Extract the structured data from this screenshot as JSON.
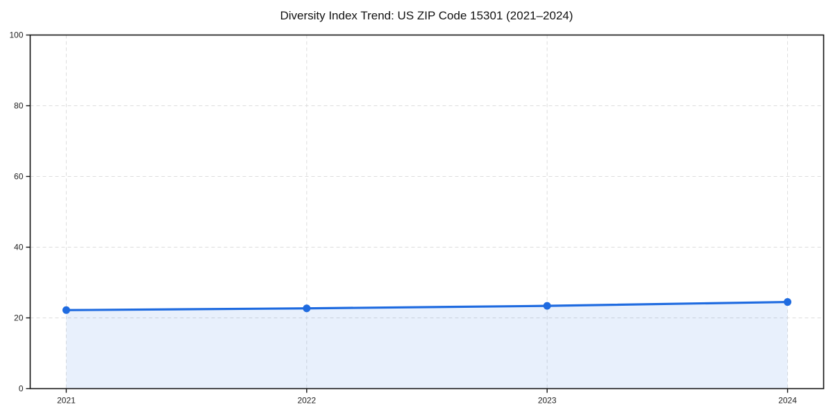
{
  "title": "Diversity Index Trend: US ZIP Code 15301 (2021–2024)",
  "colors": {
    "line": "#1f6be0",
    "marker": "#1f6be0",
    "area_fill": "rgba(31,107,224,0.10)",
    "grid": "#dcdcdc",
    "spine": "#111111",
    "tick": "#111111",
    "tick_label": "#222222",
    "title_text": "#111111",
    "background": "#ffffff"
  },
  "chart_data": {
    "type": "line",
    "title": "Diversity Index Trend: US ZIP Code 15301 (2021–2024)",
    "x": [
      2021,
      2022,
      2023,
      2024
    ],
    "xtick_labels": [
      "2021",
      "2022",
      "2023",
      "2024"
    ],
    "series": [
      {
        "name": "Diversity Index",
        "values": [
          22.2,
          22.7,
          23.4,
          24.5
        ]
      }
    ],
    "xlabel": "",
    "ylabel": "",
    "ylim": [
      0,
      100
    ],
    "yticks": [
      0,
      20,
      40,
      60,
      80,
      100
    ],
    "x_margin_fraction": 0.05,
    "grid": true,
    "grid_style": "dashed",
    "legend": "none",
    "marker": "circle",
    "area_fill": true,
    "frame": "full-box"
  }
}
